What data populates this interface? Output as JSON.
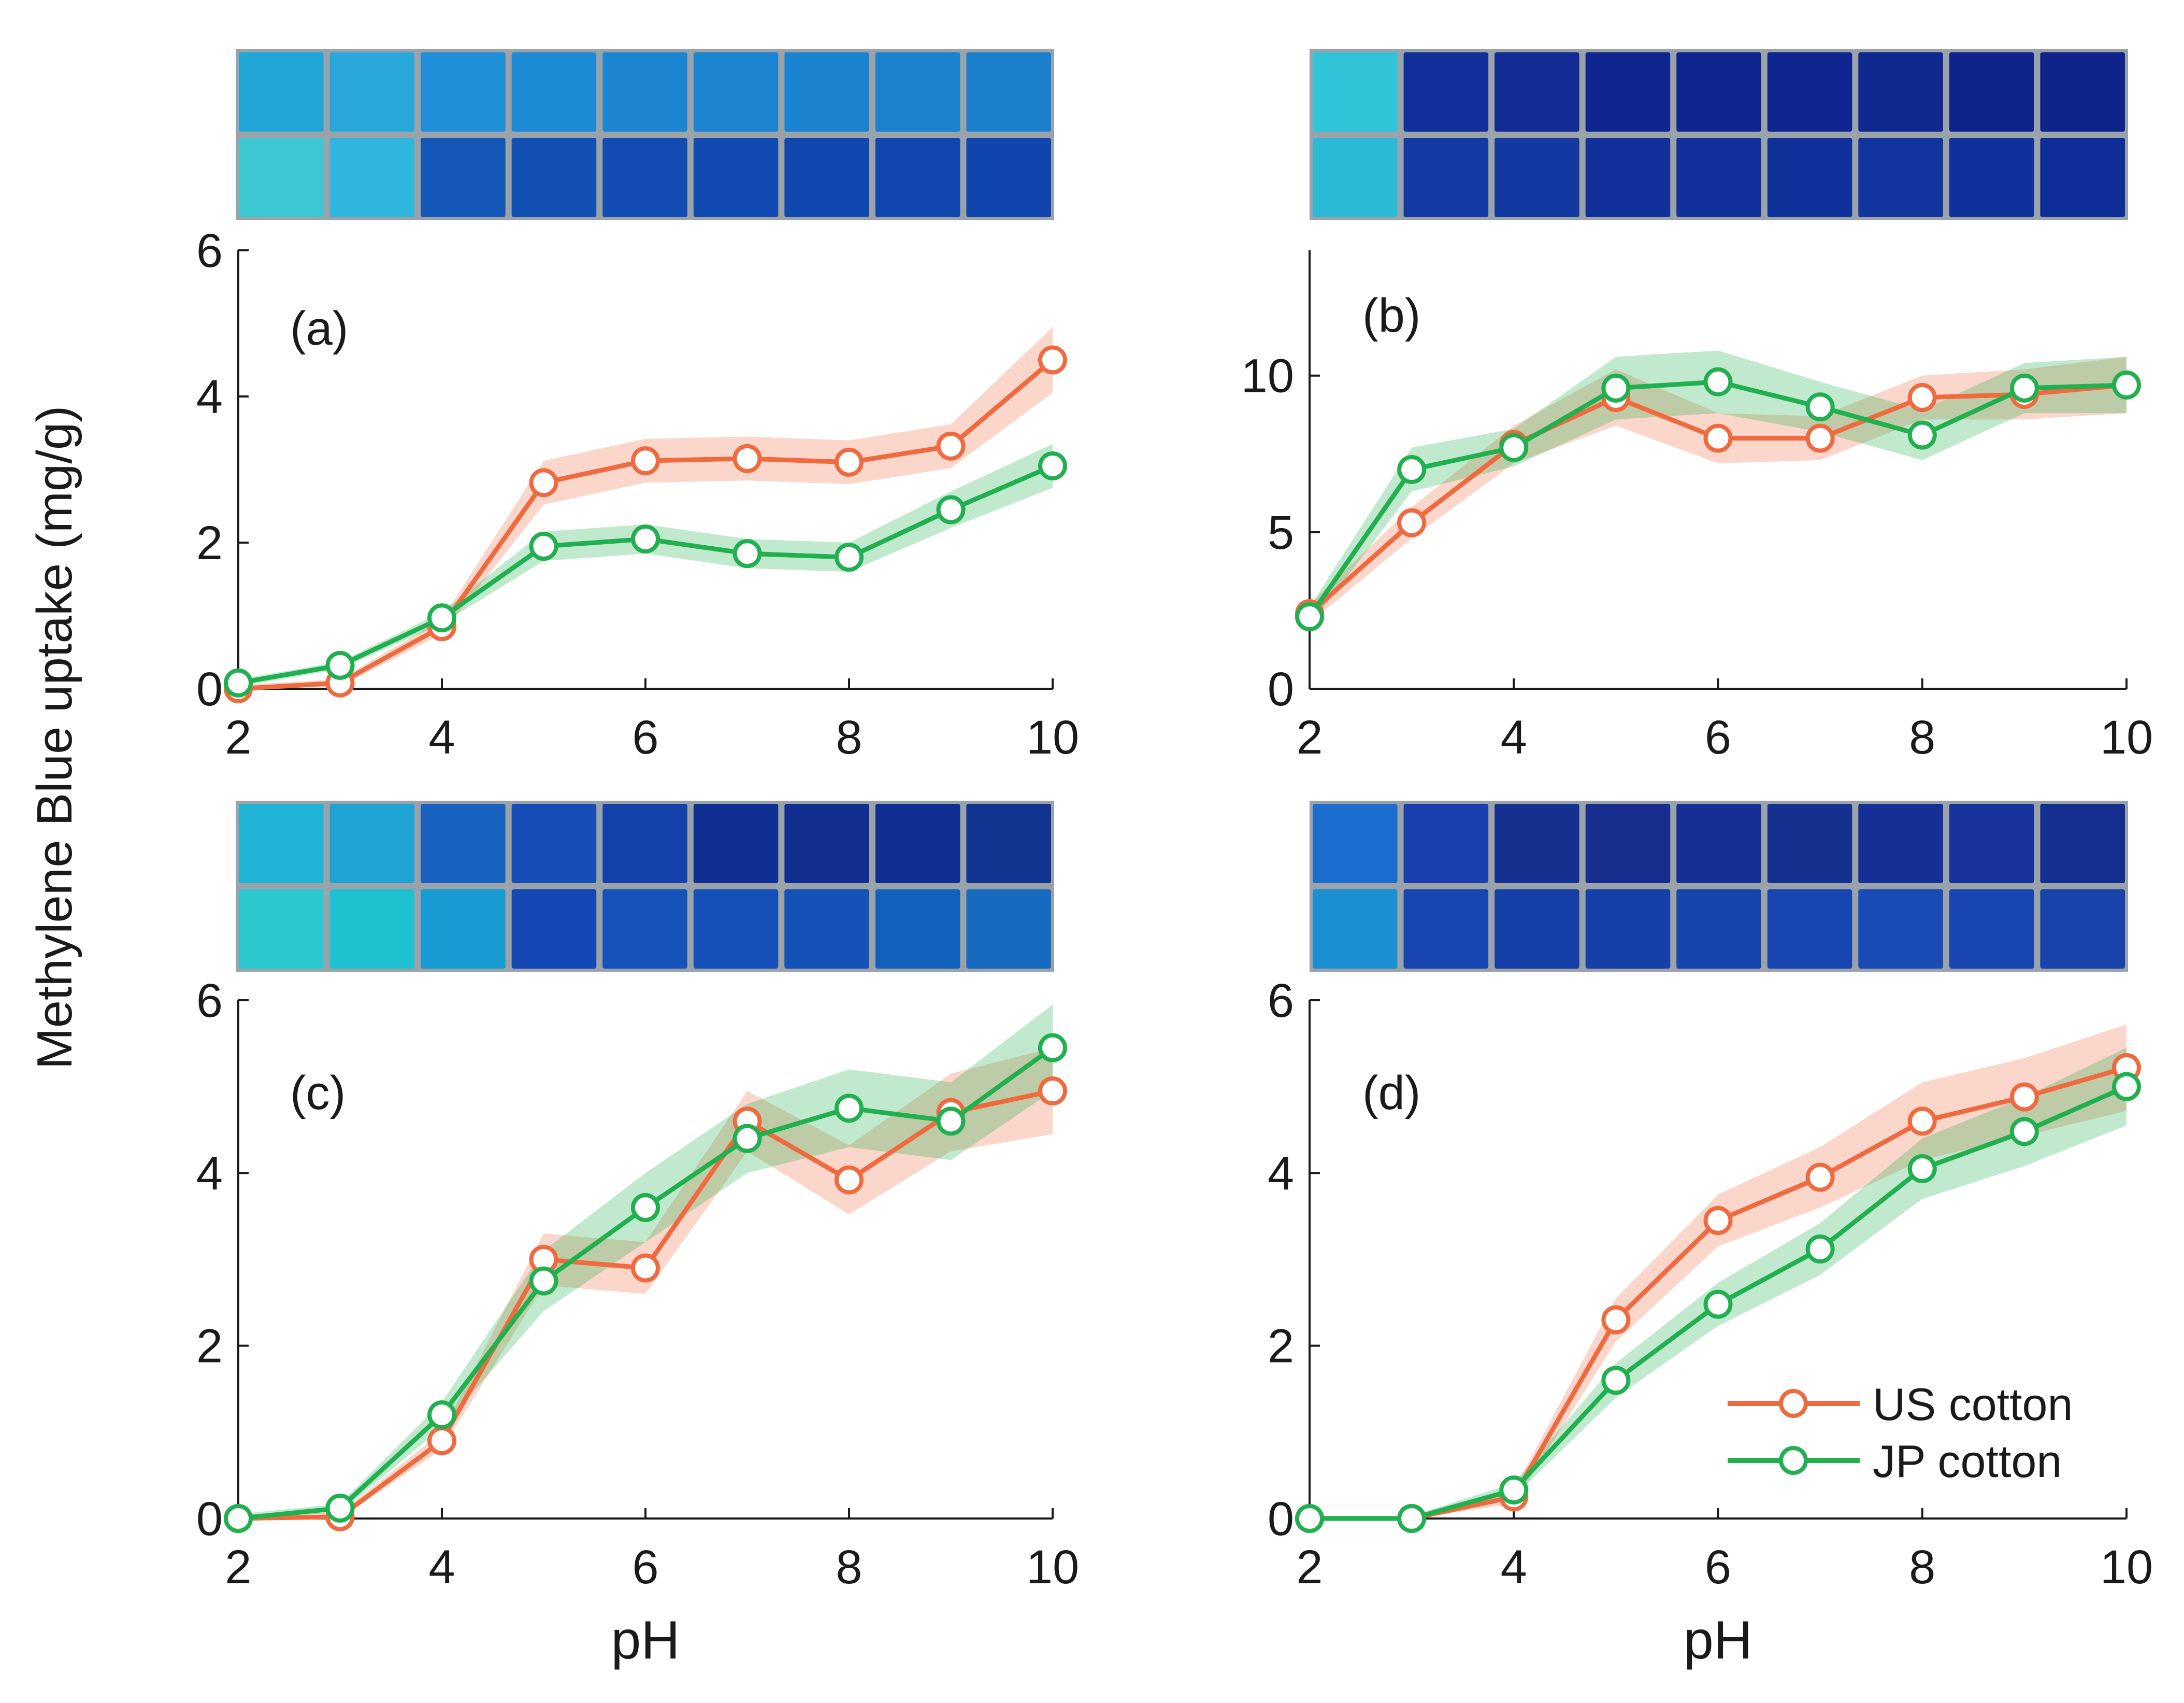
{
  "figure": {
    "ylabel": "Methylene Blue uptake (mg/g)",
    "legend": [
      {
        "name": "US cotton",
        "color": "#f06a3f"
      },
      {
        "name": "JP cotton",
        "color": "#21b04f"
      }
    ]
  },
  "chart_data": [
    {
      "type": "line",
      "panel": "(a)",
      "xlabel": "",
      "ylabel": "Methylene Blue uptake (mg/g)",
      "x": [
        2,
        3,
        4,
        5,
        6,
        7,
        8,
        9,
        10
      ],
      "xlim": [
        2,
        10
      ],
      "ylim": [
        0,
        6
      ],
      "xticks": [
        2,
        4,
        6,
        8,
        10
      ],
      "yticks": [
        0,
        2,
        4,
        6
      ],
      "grid": false,
      "series": [
        {
          "name": "US cotton",
          "color": "#f06a3f",
          "values": [
            0.0,
            0.08,
            0.85,
            2.82,
            3.12,
            3.15,
            3.1,
            3.32,
            4.5
          ],
          "band": [
            0.05,
            0.05,
            0.1,
            0.3,
            0.3,
            0.3,
            0.3,
            0.3,
            0.45
          ]
        },
        {
          "name": "JP cotton",
          "color": "#21b04f",
          "values": [
            0.08,
            0.32,
            0.97,
            1.95,
            2.05,
            1.85,
            1.8,
            2.45,
            3.05
          ],
          "band": [
            0.05,
            0.05,
            0.08,
            0.2,
            0.2,
            0.2,
            0.2,
            0.25,
            0.3
          ]
        }
      ]
    },
    {
      "type": "line",
      "panel": "(b)",
      "xlabel": "",
      "ylabel": "",
      "x": [
        2,
        3,
        4,
        5,
        6,
        7,
        8,
        9,
        10
      ],
      "xlim": [
        2,
        10
      ],
      "ylim": [
        0,
        14
      ],
      "xticks": [
        2,
        4,
        6,
        8,
        10
      ],
      "yticks": [
        0,
        5,
        10
      ],
      "grid": false,
      "series": [
        {
          "name": "US cotton",
          "color": "#f06a3f",
          "values": [
            2.4,
            5.3,
            7.8,
            9.3,
            8.0,
            8.0,
            9.3,
            9.4,
            9.7
          ],
          "band": [
            0.3,
            0.5,
            0.6,
            0.9,
            0.8,
            0.7,
            0.7,
            0.8,
            0.9
          ]
        },
        {
          "name": "JP cotton",
          "color": "#21b04f",
          "values": [
            2.3,
            7.0,
            7.7,
            9.6,
            9.8,
            9.0,
            8.1,
            9.6,
            9.7
          ],
          "band": [
            0.3,
            0.7,
            0.6,
            1.0,
            1.0,
            0.8,
            0.8,
            0.8,
            0.9
          ]
        }
      ]
    },
    {
      "type": "line",
      "panel": "(c)",
      "xlabel": "pH",
      "ylabel": "",
      "x": [
        2,
        3,
        4,
        5,
        6,
        7,
        8,
        9,
        10
      ],
      "xlim": [
        2,
        10
      ],
      "ylim": [
        0,
        6
      ],
      "xticks": [
        2,
        4,
        6,
        8,
        10
      ],
      "yticks": [
        0,
        2,
        4,
        6
      ],
      "grid": false,
      "series": [
        {
          "name": "US cotton",
          "color": "#f06a3f",
          "values": [
            0.0,
            0.02,
            0.9,
            3.0,
            2.9,
            4.6,
            3.92,
            4.7,
            4.95
          ],
          "band": [
            0.05,
            0.05,
            0.1,
            0.3,
            0.3,
            0.35,
            0.4,
            0.45,
            0.5
          ]
        },
        {
          "name": "JP cotton",
          "color": "#21b04f",
          "values": [
            0.0,
            0.12,
            1.2,
            2.75,
            3.6,
            4.4,
            4.75,
            4.6,
            5.45
          ],
          "band": [
            0.05,
            0.05,
            0.15,
            0.35,
            0.4,
            0.4,
            0.45,
            0.45,
            0.5
          ]
        }
      ]
    },
    {
      "type": "line",
      "panel": "(d)",
      "xlabel": "pH",
      "ylabel": "",
      "x": [
        2,
        3,
        4,
        5,
        6,
        7,
        8,
        9,
        10
      ],
      "xlim": [
        2,
        10
      ],
      "ylim": [
        0,
        6
      ],
      "xticks": [
        2,
        4,
        6,
        8,
        10
      ],
      "yticks": [
        0,
        2,
        4,
        6
      ],
      "grid": false,
      "legend_position": "bottom-right",
      "series": [
        {
          "name": "US cotton",
          "color": "#f06a3f",
          "values": [
            0.0,
            0.0,
            0.25,
            2.3,
            3.45,
            3.95,
            4.6,
            4.88,
            5.22
          ],
          "band": [
            0.03,
            0.03,
            0.08,
            0.25,
            0.3,
            0.35,
            0.45,
            0.45,
            0.5
          ]
        },
        {
          "name": "JP cotton",
          "color": "#21b04f",
          "values": [
            0.0,
            0.0,
            0.33,
            1.6,
            2.48,
            3.12,
            4.05,
            4.48,
            5.0
          ],
          "band": [
            0.03,
            0.03,
            0.08,
            0.2,
            0.25,
            0.3,
            0.35,
            0.4,
            0.45
          ]
        }
      ]
    }
  ],
  "photos": [
    {
      "panel": "(a)",
      "top_row": [
        "#1fa6d6",
        "#2aa8dc",
        "#1f8fd8",
        "#1d8ad6",
        "#1c86d2",
        "#1b85d1",
        "#1b84d0",
        "#1a82cf",
        "#1a80ce"
      ],
      "bottom_row": [
        "#3cc9d4",
        "#2fb6dc",
        "#1457b8",
        "#1350b4",
        "#124cb2",
        "#114ab0",
        "#1148af",
        "#1046ae",
        "#1045ad"
      ]
    },
    {
      "panel": "(b)",
      "top_row": [
        "#2fc4d8",
        "#12309a",
        "#112c95",
        "#0f2690",
        "#0f2690",
        "#0f2690",
        "#10298f",
        "#0e248a",
        "#0e248a"
      ],
      "bottom_row": [
        "#2ab9d6",
        "#143aa4",
        "#1338a0",
        "#11309a",
        "#11309a",
        "#10309a",
        "#12349d",
        "#10309a",
        "#0f2d96"
      ]
    },
    {
      "panel": "(c)",
      "top_row": [
        "#1fb3d6",
        "#1fa3d4",
        "#1a62c0",
        "#164db6",
        "#1342aa",
        "#0f2f92",
        "#0f2e90",
        "#0f2e92",
        "#10348f"
      ],
      "bottom_row": [
        "#2cc8cf",
        "#1fc0d0",
        "#189bd2",
        "#1348b5",
        "#1553bb",
        "#1450b8",
        "#1452b8",
        "#1460bd",
        "#176abf"
      ]
    },
    {
      "panel": "(d)",
      "top_row": [
        "#1b6ed0",
        "#1b3eae",
        "#15318f",
        "#172e8f",
        "#162f95",
        "#15318f",
        "#142f96",
        "#16339b",
        "#152f90"
      ],
      "bottom_row": [
        "#1c8fd2",
        "#1845b0",
        "#173fa8",
        "#173fa8",
        "#1744ad",
        "#1845b0",
        "#1a4bb4",
        "#1845b0",
        "#1743aa"
      ]
    }
  ]
}
